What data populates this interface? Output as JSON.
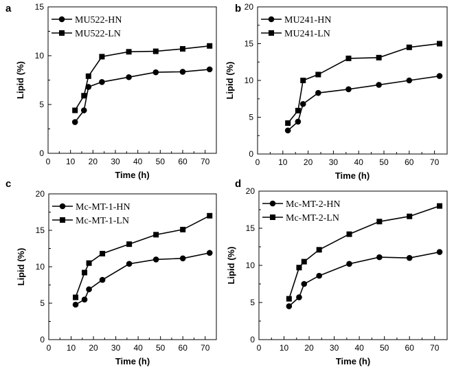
{
  "colors": {
    "line": "#000000",
    "background": "#ffffff"
  },
  "chart_data": [
    {
      "panel": "a",
      "type": "line",
      "xlabel": "Time (h)",
      "ylabel": "Lipid (%)",
      "xlim": [
        0,
        75
      ],
      "ylim": [
        0,
        15
      ],
      "xticks": [
        0,
        10,
        20,
        30,
        40,
        50,
        60,
        70
      ],
      "yticks": [
        0,
        5,
        10,
        15
      ],
      "legend_position": "top-left",
      "series": [
        {
          "name": "MU522-HN",
          "marker": "circle",
          "x": [
            12,
            16,
            18,
            24,
            36,
            48,
            60,
            72
          ],
          "y": [
            3.2,
            4.4,
            6.8,
            7.3,
            7.8,
            8.3,
            8.35,
            8.6
          ]
        },
        {
          "name": "MU522-LN",
          "marker": "square",
          "x": [
            12,
            16,
            18,
            24,
            36,
            48,
            60,
            72
          ],
          "y": [
            4.4,
            5.9,
            7.9,
            9.9,
            10.4,
            10.45,
            10.7,
            11.0
          ]
        }
      ]
    },
    {
      "panel": "b",
      "type": "line",
      "xlabel": "Time (h)",
      "ylabel": "Lipid (%)",
      "xlim": [
        0,
        75
      ],
      "ylim": [
        0,
        20
      ],
      "xticks": [
        0,
        10,
        20,
        30,
        40,
        50,
        60,
        70
      ],
      "yticks": [
        0,
        5,
        10,
        15,
        20
      ],
      "legend_position": "top-left",
      "series": [
        {
          "name": "MU241-HN",
          "marker": "circle",
          "x": [
            12,
            16,
            18,
            24,
            36,
            48,
            60,
            72
          ],
          "y": [
            3.2,
            4.4,
            6.8,
            8.3,
            8.8,
            9.4,
            10.0,
            10.6
          ]
        },
        {
          "name": "MU241-LN",
          "marker": "square",
          "x": [
            12,
            16,
            18,
            24,
            36,
            48,
            60,
            72
          ],
          "y": [
            4.2,
            5.9,
            10.0,
            10.8,
            13.0,
            13.1,
            14.5,
            15.0
          ]
        }
      ]
    },
    {
      "panel": "c",
      "type": "line",
      "xlabel": "Time (h)",
      "ylabel": "Lipid (%)",
      "xlim": [
        0,
        75
      ],
      "ylim": [
        0,
        20
      ],
      "xticks": [
        0,
        10,
        20,
        30,
        40,
        50,
        60,
        70
      ],
      "yticks": [
        0,
        5,
        10,
        15,
        20
      ],
      "legend_position": "top-left",
      "series": [
        {
          "name": "Mc-MT-1-HN",
          "marker": "circle",
          "x": [
            12,
            16,
            18,
            24,
            36,
            48,
            60,
            72
          ],
          "y": [
            4.8,
            5.5,
            6.9,
            8.2,
            10.4,
            11.0,
            11.15,
            11.9
          ]
        },
        {
          "name": "Mc-MT-1-LN",
          "marker": "square",
          "x": [
            12,
            16,
            18,
            24,
            36,
            48,
            60,
            72
          ],
          "y": [
            5.8,
            9.2,
            10.5,
            11.8,
            13.1,
            14.4,
            15.1,
            17.0
          ]
        }
      ]
    },
    {
      "panel": "d",
      "type": "line",
      "xlabel": "Time (h)",
      "ylabel": "Lipid (%)",
      "xlim": [
        0,
        75
      ],
      "ylim": [
        0,
        20
      ],
      "xticks": [
        0,
        10,
        20,
        30,
        40,
        50,
        60,
        70
      ],
      "yticks": [
        0,
        5,
        10,
        15,
        20
      ],
      "legend_position": "top-left",
      "series": [
        {
          "name": "Mc-MT-2-HN",
          "marker": "circle",
          "x": [
            12,
            16,
            18,
            24,
            36,
            48,
            60,
            72
          ],
          "y": [
            4.5,
            5.7,
            7.5,
            8.6,
            10.2,
            11.1,
            11.0,
            11.8
          ]
        },
        {
          "name": "Mc-MT-2-LN",
          "marker": "square",
          "x": [
            12,
            16,
            18,
            24,
            36,
            48,
            60,
            72
          ],
          "y": [
            5.5,
            9.7,
            10.5,
            12.1,
            14.2,
            15.9,
            16.6,
            18.0
          ]
        }
      ]
    }
  ]
}
